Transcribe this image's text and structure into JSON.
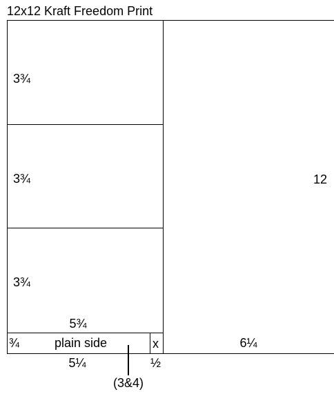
{
  "title": "12x12 Kraft Freedom Print",
  "sections": {
    "top": "3¾",
    "middle": "3¾",
    "bottom": "3¾"
  },
  "dimensions": {
    "total_height": "12",
    "left_width": "5¾",
    "right_width": "6¼",
    "strip_left": "¾",
    "strip_label": "plain side",
    "strip_x": "x",
    "below_width": "5¼",
    "below_half": "½",
    "pointer_label": "(3&4)"
  }
}
